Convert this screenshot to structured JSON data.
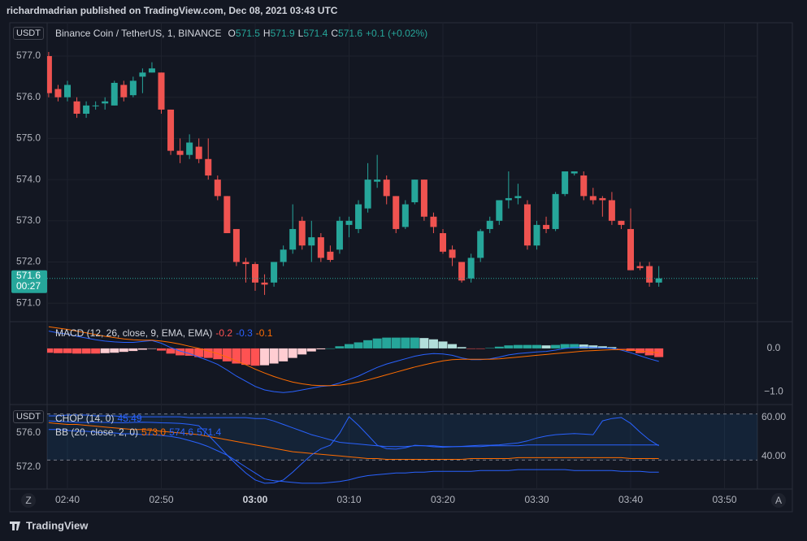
{
  "header": "richardmadrian published on TradingView.com, Dec 08, 2021 03:43 UTC",
  "footer": "TradingView",
  "buttons": [
    "Z",
    "A"
  ],
  "chart_data": [
    {
      "type": "candlestick",
      "title": "Binance Coin / TetherUS, 1, BINANCE",
      "unit": "USDT",
      "ohlc_labels": [
        "O",
        "H",
        "L",
        "C"
      ],
      "change": "+0.1 (+0.02%)",
      "countdown": "00:27",
      "up_color": "#26a69a",
      "down_color": "#ef5350",
      "x": [
        "02:38",
        "02:39",
        "02:40",
        "02:41",
        "02:42",
        "02:43",
        "02:44",
        "02:45",
        "02:46",
        "02:47",
        "02:48",
        "02:49",
        "02:50",
        "02:51",
        "02:52",
        "02:53",
        "02:54",
        "02:55",
        "02:56",
        "02:57",
        "02:58",
        "02:59",
        "03:00",
        "03:01",
        "03:02",
        "03:03",
        "03:04",
        "03:05",
        "03:06",
        "03:07",
        "03:08",
        "03:09",
        "03:10",
        "03:11",
        "03:12",
        "03:13",
        "03:14",
        "03:15",
        "03:16",
        "03:17",
        "03:18",
        "03:19",
        "03:20",
        "03:21",
        "03:22",
        "03:23",
        "03:24",
        "03:25",
        "03:26",
        "03:27",
        "03:28",
        "03:29",
        "03:30",
        "03:31",
        "03:32",
        "03:33",
        "03:34",
        "03:35",
        "03:36",
        "03:37",
        "03:38",
        "03:39",
        "03:40",
        "03:41",
        "03:42",
        "03:43"
      ],
      "open": [
        577.0,
        576.2,
        576.0,
        575.9,
        575.6,
        575.8,
        575.85,
        575.8,
        576.3,
        576.05,
        576.5,
        576.6,
        576.6,
        575.7,
        574.7,
        574.6,
        574.8,
        574.5,
        574.0,
        573.6,
        572.8,
        572.0,
        571.95,
        571.5,
        571.5,
        572.0,
        572.3,
        573.0,
        572.4,
        572.6,
        572.25,
        572.3,
        572.9,
        572.8,
        573.3,
        573.95,
        574.0,
        573.6,
        572.85,
        573.45,
        574.0,
        573.1,
        572.7,
        572.3,
        572.0,
        571.6,
        572.1,
        572.8,
        573.0,
        573.5,
        573.55,
        573.4,
        572.4,
        572.9,
        572.8,
        573.65,
        574.15,
        574.1,
        573.6,
        573.55,
        573.5,
        573.0,
        572.8,
        571.9,
        571.9,
        571.5
      ],
      "high": [
        577.1,
        576.3,
        576.4,
        576.0,
        575.9,
        575.9,
        576.0,
        576.4,
        576.4,
        576.5,
        576.7,
        576.85,
        576.6,
        575.7,
        575.0,
        575.1,
        575.0,
        575.0,
        574.1,
        573.6,
        572.8,
        572.1,
        572.0,
        571.7,
        572.0,
        572.4,
        573.4,
        573.1,
        573.0,
        572.7,
        572.4,
        573.1,
        573.1,
        573.5,
        574.4,
        574.6,
        574.1,
        573.6,
        573.5,
        574.0,
        574.0,
        573.2,
        572.8,
        572.4,
        572.0,
        572.2,
        572.8,
        573.1,
        573.5,
        574.2,
        573.9,
        573.5,
        573.0,
        573.1,
        573.7,
        574.2,
        574.2,
        574.2,
        573.8,
        573.6,
        573.7,
        573.0,
        573.3,
        572.0,
        572.0,
        571.9
      ],
      "low": [
        576.0,
        575.9,
        575.9,
        575.5,
        575.5,
        575.7,
        575.7,
        575.8,
        575.9,
        576.0,
        576.1,
        576.6,
        575.6,
        574.6,
        574.4,
        574.5,
        574.4,
        574.0,
        573.5,
        572.7,
        571.9,
        571.5,
        571.3,
        571.2,
        571.4,
        571.9,
        572.2,
        572.3,
        572.0,
        572.0,
        572.0,
        572.2,
        572.6,
        572.7,
        573.2,
        573.8,
        573.4,
        572.7,
        572.8,
        573.4,
        573.0,
        572.7,
        572.2,
        571.9,
        571.5,
        571.5,
        572.0,
        572.7,
        572.9,
        573.3,
        573.4,
        572.3,
        572.3,
        572.7,
        572.75,
        573.6,
        574.1,
        573.5,
        573.4,
        573.1,
        572.9,
        572.8,
        571.8,
        571.8,
        571.4,
        571.4
      ],
      "close": [
        576.1,
        576.0,
        576.3,
        575.6,
        575.8,
        575.8,
        575.9,
        576.35,
        576.0,
        576.4,
        576.6,
        576.7,
        575.7,
        574.7,
        574.6,
        574.9,
        574.5,
        574.1,
        573.6,
        572.7,
        572.0,
        571.95,
        571.5,
        571.45,
        572.0,
        572.3,
        572.8,
        572.4,
        572.6,
        572.1,
        572.05,
        573.0,
        573.0,
        573.4,
        574.0,
        574.0,
        573.6,
        572.8,
        573.4,
        574.0,
        573.1,
        572.85,
        572.25,
        572.1,
        571.55,
        572.1,
        572.75,
        573.0,
        573.5,
        573.55,
        573.6,
        572.4,
        572.9,
        572.8,
        573.65,
        574.2,
        574.2,
        573.6,
        573.5,
        573.5,
        573.0,
        572.9,
        571.8,
        571.85,
        571.5,
        571.6
      ],
      "ylim": [
        570.57,
        577.77
      ],
      "yticks": [
        {
          "value": 577,
          "label": "577.0"
        },
        {
          "value": 576,
          "label": "576.0"
        },
        {
          "value": 575,
          "label": "575.0"
        },
        {
          "value": 574,
          "label": "574.0"
        },
        {
          "value": 573,
          "label": "573.0"
        },
        {
          "value": 572,
          "label": "572.0"
        },
        {
          "value": 571,
          "label": "571.0"
        }
      ],
      "xticks": [
        "02:40",
        "02:50",
        "03:00",
        "03:10",
        "03:20",
        "03:30",
        "03:40",
        "03:50"
      ],
      "grid": true
    },
    {
      "type": "macd",
      "title": "MACD (12, 26, close, 9, EMA, EMA)",
      "hist_colors": [
        "#26a69a",
        "#b2dfdb",
        "#ffcdd2",
        "#ff5252"
      ],
      "macd_color": "#2962ff",
      "signal_color": "#ff6d00",
      "histogram": [
        -0.1,
        -0.11,
        -0.11,
        -0.12,
        -0.12,
        -0.12,
        -0.11,
        -0.1,
        -0.08,
        -0.06,
        -0.03,
        -0.01,
        -0.05,
        -0.12,
        -0.16,
        -0.17,
        -0.2,
        -0.22,
        -0.25,
        -0.3,
        -0.35,
        -0.38,
        -0.4,
        -0.39,
        -0.35,
        -0.3,
        -0.22,
        -0.14,
        -0.07,
        -0.02,
        0.0,
        0.05,
        0.1,
        0.14,
        0.19,
        0.23,
        0.25,
        0.25,
        0.25,
        0.25,
        0.24,
        0.21,
        0.16,
        0.1,
        0.03,
        -0.01,
        -0.01,
        0.01,
        0.04,
        0.07,
        0.08,
        0.08,
        0.08,
        0.07,
        0.08,
        0.1,
        0.1,
        0.09,
        0.07,
        0.05,
        0.03,
        -0.01,
        -0.06,
        -0.11,
        -0.16,
        -0.2
      ],
      "macd": [
        0.4,
        0.36,
        0.33,
        0.28,
        0.24,
        0.2,
        0.17,
        0.15,
        0.14,
        0.14,
        0.16,
        0.18,
        0.12,
        0.02,
        -0.06,
        -0.12,
        -0.2,
        -0.28,
        -0.37,
        -0.5,
        -0.64,
        -0.76,
        -0.88,
        -0.96,
        -1.0,
        -1.02,
        -1.0,
        -0.96,
        -0.92,
        -0.88,
        -0.86,
        -0.8,
        -0.72,
        -0.64,
        -0.54,
        -0.44,
        -0.36,
        -0.3,
        -0.24,
        -0.18,
        -0.14,
        -0.12,
        -0.13,
        -0.16,
        -0.22,
        -0.26,
        -0.26,
        -0.24,
        -0.2,
        -0.15,
        -0.12,
        -0.1,
        -0.08,
        -0.07,
        -0.04,
        0.0,
        0.02,
        0.03,
        0.02,
        0.01,
        0.0,
        -0.04,
        -0.1,
        -0.17,
        -0.24,
        -0.3
      ],
      "signal": [
        0.5,
        0.47,
        0.44,
        0.4,
        0.36,
        0.32,
        0.28,
        0.25,
        0.22,
        0.2,
        0.19,
        0.19,
        0.17,
        0.14,
        0.1,
        0.05,
        0.0,
        -0.06,
        -0.12,
        -0.2,
        -0.29,
        -0.38,
        -0.48,
        -0.57,
        -0.65,
        -0.72,
        -0.78,
        -0.82,
        -0.85,
        -0.86,
        -0.86,
        -0.85,
        -0.82,
        -0.78,
        -0.73,
        -0.67,
        -0.61,
        -0.55,
        -0.49,
        -0.43,
        -0.38,
        -0.33,
        -0.29,
        -0.26,
        -0.25,
        -0.25,
        -0.25,
        -0.25,
        -0.24,
        -0.22,
        -0.2,
        -0.18,
        -0.16,
        -0.14,
        -0.12,
        -0.1,
        -0.08,
        -0.06,
        -0.05,
        -0.04,
        -0.03,
        -0.03,
        -0.04,
        -0.06,
        -0.08,
        -0.1
      ],
      "ylim": [
        -1.28,
        0.6
      ],
      "yticks": [
        {
          "value": 0,
          "label": "0.0"
        },
        {
          "value": -1,
          "label": "−1.0"
        }
      ]
    },
    {
      "type": "chop_bb",
      "title": "CHOP (14, 0)",
      "bb_title": "BB (20, close, 2, 0)",
      "unit": "USDT",
      "chop_color": "#2962ff",
      "band_color": "#2196f3",
      "bands": [
        38.2,
        61.8
      ],
      "chop": [
        58.3,
        58.0,
        57.8,
        57.5,
        57.5,
        57.6,
        57.5,
        57.4,
        57.3,
        57.5,
        57.6,
        57.5,
        57.3,
        57.2,
        57.0,
        56.5,
        55.8,
        51.0,
        46.0,
        40.8,
        36.0,
        31.5,
        28.0,
        26.3,
        26.5,
        28.0,
        32.0,
        36.5,
        40.8,
        44.0,
        45.8,
        52.0,
        60.4,
        56.0,
        51.0,
        45.8,
        44.0,
        43.8,
        44.5,
        45.8,
        45.5,
        45.0,
        44.8,
        45.0,
        45.2,
        45.5,
        45.8,
        45.8,
        46.0,
        46.5,
        47.0,
        48.0,
        49.5,
        50.5,
        51.2,
        51.5,
        51.8,
        51.5,
        51.2,
        58.3,
        59.5,
        60.0,
        57.0,
        52.5,
        48.5,
        45.49
      ],
      "ylim": [
        23.75,
        66.25
      ],
      "yticks": [
        {
          "value": 60,
          "label": "60.00"
        },
        {
          "value": 40,
          "label": "40.00"
        }
      ],
      "bb": [
        {
          "color": "#ff6d00",
          "legend_value": "573.0",
          "values": [
            577.2,
            577.1,
            577.0,
            577.0,
            576.9,
            576.8,
            576.7,
            576.6,
            576.5,
            576.4,
            576.4,
            576.3,
            576.2,
            576.1,
            576.0,
            575.9,
            575.8,
            575.6,
            575.4,
            575.2,
            575.0,
            574.8,
            574.6,
            574.4,
            574.2,
            574.0,
            573.8,
            573.7,
            573.6,
            573.5,
            573.4,
            573.3,
            573.2,
            573.1,
            573.0,
            573.0,
            572.9,
            572.9,
            572.9,
            572.9,
            572.9,
            572.9,
            572.9,
            572.9,
            572.9,
            573.0,
            573.0,
            573.0,
            573.0,
            573.0,
            573.1,
            573.1,
            573.1,
            573.1,
            573.1,
            573.1,
            573.1,
            573.1,
            573.1,
            573.1,
            573.1,
            573.1,
            573.0,
            573.0,
            573.0,
            573.0
          ]
        },
        {
          "color": "#2962ff",
          "legend_value": "574.6",
          "values": [
            578.0,
            578.0,
            578.1,
            578.1,
            578.1,
            578.0,
            578.0,
            578.0,
            577.9,
            577.9,
            577.9,
            577.9,
            577.9,
            577.9,
            577.9,
            577.8,
            577.8,
            577.8,
            577.8,
            577.8,
            577.8,
            577.8,
            577.7,
            577.7,
            577.4,
            577.0,
            576.6,
            576.2,
            575.8,
            575.5,
            575.2,
            574.9,
            574.8,
            574.7,
            574.6,
            574.5,
            574.4,
            574.4,
            574.4,
            574.5,
            574.5,
            574.5,
            574.4,
            574.4,
            574.4,
            574.4,
            574.4,
            574.5,
            574.5,
            574.5,
            574.5,
            574.6,
            574.6,
            574.6,
            574.6,
            574.6,
            574.6,
            574.6,
            574.6,
            574.6,
            574.6,
            574.6,
            574.6,
            574.6,
            574.6,
            574.6
          ]
        },
        {
          "color": "#2962ff",
          "legend_value": "571.4",
          "values": [
            576.4,
            576.4,
            576.3,
            576.2,
            576.2,
            576.1,
            576.0,
            576.0,
            575.9,
            575.9,
            575.8,
            575.8,
            575.7,
            575.6,
            575.4,
            575.1,
            574.8,
            574.4,
            573.9,
            573.4,
            572.7,
            572.0,
            571.3,
            570.6,
            570.4,
            570.3,
            570.2,
            570.1,
            570.1,
            570.1,
            570.2,
            570.3,
            570.5,
            570.8,
            571.0,
            571.1,
            571.2,
            571.3,
            571.3,
            571.4,
            571.4,
            571.5,
            571.5,
            571.5,
            571.5,
            571.5,
            571.6,
            571.6,
            571.6,
            571.6,
            571.7,
            571.7,
            571.7,
            571.7,
            571.7,
            571.7,
            571.6,
            571.6,
            571.6,
            571.6,
            571.6,
            571.5,
            571.5,
            571.5,
            571.4,
            571.4
          ]
        }
      ],
      "y2lim": [
        569.52,
        579.24
      ],
      "y2ticks": [
        {
          "value": 576,
          "label": "576.0"
        },
        {
          "value": 572,
          "label": "572.0"
        }
      ]
    }
  ]
}
